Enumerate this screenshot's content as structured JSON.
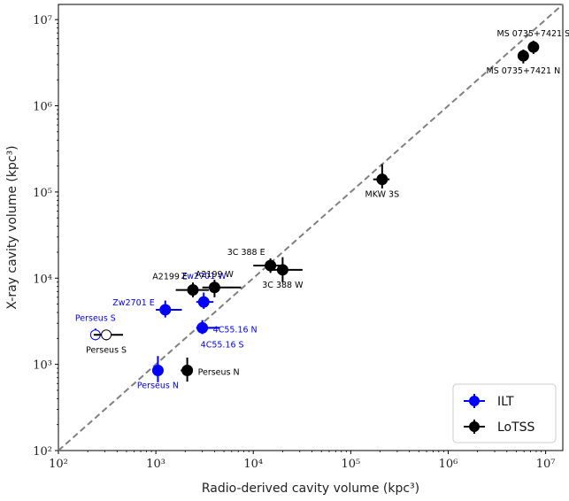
{
  "chart_data": {
    "type": "scatter",
    "xlabel": "Radio-derived cavity volume (kpc³)",
    "ylabel": "X-ray cavity volume (kpc³)",
    "xscale": "log",
    "yscale": "log",
    "xlim": [
      100,
      15000000
    ],
    "ylim": [
      100,
      15000000
    ],
    "x_ticks": [
      {
        "value": 100,
        "label": "10²"
      },
      {
        "value": 1000,
        "label": "10³"
      },
      {
        "value": 10000,
        "label": "10⁴"
      },
      {
        "value": 100000,
        "label": "10⁵"
      },
      {
        "value": 1000000,
        "label": "10⁶"
      },
      {
        "value": 10000000,
        "label": "10⁷"
      }
    ],
    "y_ticks": [
      {
        "value": 100,
        "label": "10²"
      },
      {
        "value": 1000,
        "label": "10³"
      },
      {
        "value": 10000,
        "label": "10⁴"
      },
      {
        "value": 100000,
        "label": "10⁵"
      },
      {
        "value": 1000000,
        "label": "10⁶"
      },
      {
        "value": 10000000,
        "label": "10⁷"
      }
    ],
    "one_to_one_line": true,
    "grid": false,
    "legend_position": "lower-right",
    "series": [
      {
        "name": "ILT",
        "color": "#0000ff",
        "points": [
          {
            "label": "Perseus N",
            "x": 1050,
            "y": 850,
            "xerr": [
              100,
              100
            ],
            "yerr": [
              230,
              400
            ],
            "filled": true,
            "label_anchor": "below"
          },
          {
            "label": "Perseus S",
            "x": 240,
            "y": 2200,
            "xerr": [
              20,
              20
            ],
            "yerr": [
              300,
              400
            ],
            "filled": false,
            "label_anchor": "above"
          },
          {
            "label": "Zw2701 E",
            "x": 1250,
            "y": 4300,
            "xerr": [
              250,
              600
            ],
            "yerr": [
              800,
              1200
            ],
            "filled": true,
            "label_anchor": "left"
          },
          {
            "label": "Zw2701 W",
            "x": 3100,
            "y": 5300,
            "xerr": [
              500,
              800
            ],
            "yerr": [
              900,
              1500
            ],
            "filled": true,
            "label_anchor": "above"
          },
          {
            "label": "4C55.16 N",
            "x": 3000,
            "y": 2650,
            "xerr": [
              400,
              1500
            ],
            "yerr": [
              400,
              600
            ],
            "filled": true,
            "label_anchor": "right"
          },
          {
            "label": "4C55.16 S",
            "x": 3000,
            "y": 2650,
            "xerr": [
              400,
              1500
            ],
            "yerr": [
              400,
              600
            ],
            "filled": true,
            "label_anchor": "below-ghost"
          }
        ]
      },
      {
        "name": "LoTSS",
        "color": "#000000",
        "points": [
          {
            "label": "Perseus N",
            "x": 2100,
            "y": 850,
            "xerr": [
              300,
              300
            ],
            "yerr": [
              220,
              350
            ],
            "filled": true,
            "label_anchor": "right"
          },
          {
            "label": "Perseus S",
            "x": 310,
            "y": 2200,
            "xerr": [
              80,
              150
            ],
            "yerr": [
              300,
              300
            ],
            "filled": false,
            "label_anchor": "below"
          },
          {
            "label": "A2199 E",
            "x": 2400,
            "y": 7300,
            "xerr": [
              800,
              1100
            ],
            "yerr": [
              1300,
              1600
            ],
            "filled": true,
            "label_anchor": "above-left"
          },
          {
            "label": "A2199 W",
            "x": 4000,
            "y": 7800,
            "xerr": [
              1000,
              3500
            ],
            "yerr": [
              1800,
              1800
            ],
            "filled": true,
            "label_anchor": "above"
          },
          {
            "label": "3C 388 E",
            "x": 15000,
            "y": 14000,
            "xerr": [
              5000,
              5000
            ],
            "yerr": [
              2500,
              3000
            ],
            "filled": true,
            "label_anchor": "above-left"
          },
          {
            "label": "3C 388 W",
            "x": 20000,
            "y": 12500,
            "xerr": [
              5000,
              12000
            ],
            "yerr": [
              3500,
              5000
            ],
            "filled": true,
            "label_anchor": "below"
          },
          {
            "label": "MKW 3S",
            "x": 210000,
            "y": 140000,
            "xerr": [
              40000,
              40000
            ],
            "yerr": [
              30000,
              70000
            ],
            "filled": true,
            "label_anchor": "below"
          },
          {
            "label": "MS 0735+7421 S",
            "x": 7500000,
            "y": 4800000,
            "xerr": [
              500000,
              500000
            ],
            "yerr": [
              800000,
              900000
            ],
            "filled": true,
            "label_anchor": "above"
          },
          {
            "label": "MS 0735+7421 N",
            "x": 5900000,
            "y": 3800000,
            "xerr": [
              400000,
              400000
            ],
            "yerr": [
              700000,
              700000
            ],
            "filled": true,
            "label_anchor": "below"
          }
        ]
      }
    ]
  }
}
